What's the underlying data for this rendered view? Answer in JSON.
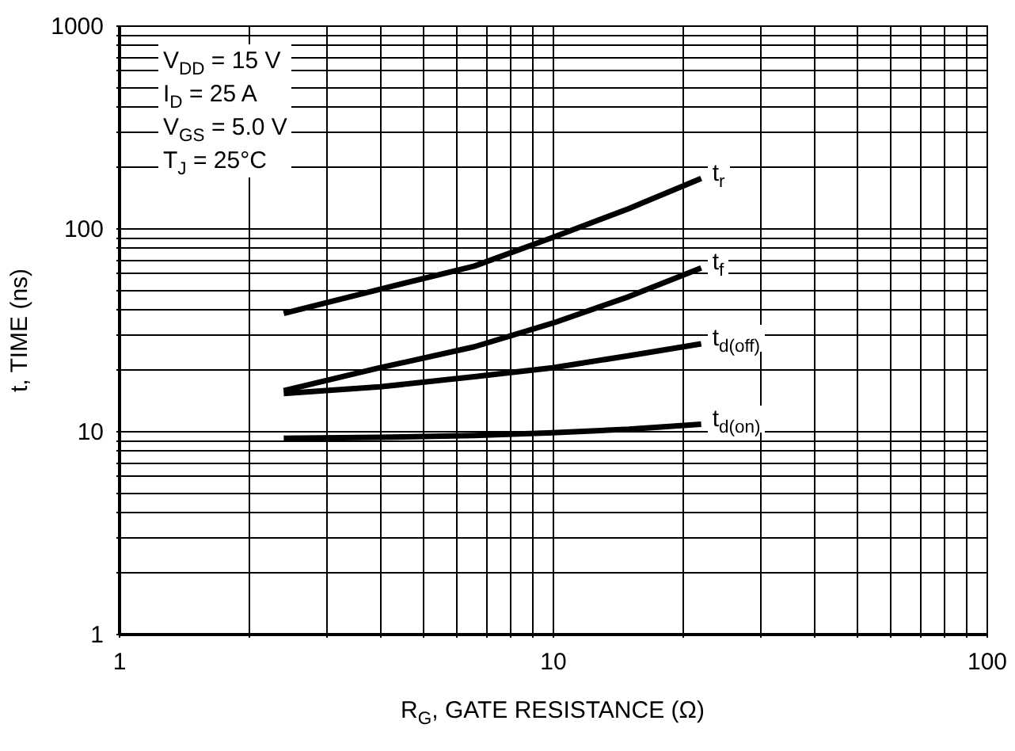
{
  "chart_data": {
    "type": "line",
    "xlabel": "R$_{G}$, GATE RESISTANCE (Ω)",
    "ylabel": "t, TIME (ns)",
    "log": "xy",
    "grid": true,
    "annotations": [
      "V$_{DD}$ = 15 V",
      "I$_{D}$ = 25 A",
      "V$_{GS}$ = 5.0 V",
      "T$_{J}$ = 25°C"
    ],
    "x": [
      2.4,
      4,
      6.6,
      10,
      15,
      22
    ],
    "series": [
      {
        "name": "t$_{r}$",
        "color": "#000000",
        "values": [
          38,
          50,
          65,
          90,
          125,
          176
        ]
      },
      {
        "name": "t$_{f}$",
        "color": "#000000",
        "values": [
          15.8,
          20.5,
          26,
          34,
          46,
          63.6
        ]
      },
      {
        "name": "t$_{d(off)}$",
        "color": "#000000",
        "values": [
          15.3,
          16.5,
          18.5,
          20.5,
          23.5,
          26.9
        ]
      },
      {
        "name": "t$_{d(on)}$",
        "color": "#000000",
        "values": [
          9.2,
          9.3,
          9.5,
          9.8,
          10.2,
          10.8
        ]
      }
    ],
    "xlim": [
      1,
      100
    ],
    "ylim": [
      1,
      1000
    ],
    "xticks": [
      1,
      {
        "value": 2,
        "label": null
      },
      {
        "value": 3,
        "label": null
      },
      {
        "value": 4,
        "label": null
      },
      {
        "value": 5,
        "label": null
      },
      {
        "value": 6,
        "label": null
      },
      {
        "value": 7,
        "label": null
      },
      {
        "value": 8,
        "label": null
      },
      {
        "value": 9,
        "label": null
      },
      10,
      {
        "value": 20,
        "label": null
      },
      {
        "value": 30,
        "label": null
      },
      {
        "value": 40,
        "label": null
      },
      {
        "value": 50,
        "label": null
      },
      {
        "value": 60,
        "label": null
      },
      {
        "value": 70,
        "label": null
      },
      {
        "value": 80,
        "label": null
      },
      {
        "value": 90,
        "label": null
      },
      100
    ],
    "yticks": [
      1,
      {
        "value": 2,
        "label": null
      },
      {
        "value": 3,
        "label": null
      },
      {
        "value": 4,
        "label": null
      },
      {
        "value": 5,
        "label": null
      },
      {
        "value": 6,
        "label": null
      },
      {
        "value": 7,
        "label": null
      },
      {
        "value": 8,
        "label": null
      },
      {
        "value": 9,
        "label": null
      },
      10,
      {
        "value": 20,
        "label": null
      },
      {
        "value": 30,
        "label": null
      },
      {
        "value": 40,
        "label": null
      },
      {
        "value": 50,
        "label": null
      },
      {
        "value": 60,
        "label": null
      },
      {
        "value": 70,
        "label": null
      },
      {
        "value": 80,
        "label": null
      },
      {
        "value": 90,
        "label": null
      },
      100,
      {
        "value": 200,
        "label": null
      },
      {
        "value": 300,
        "label": null
      },
      {
        "value": 400,
        "label": null
      },
      {
        "value": 500,
        "label": null
      },
      {
        "value": 600,
        "label": null
      },
      {
        "value": 700,
        "label": null
      },
      {
        "value": 800,
        "label": null
      },
      {
        "value": 900,
        "label": null
      },
      1000
    ]
  }
}
